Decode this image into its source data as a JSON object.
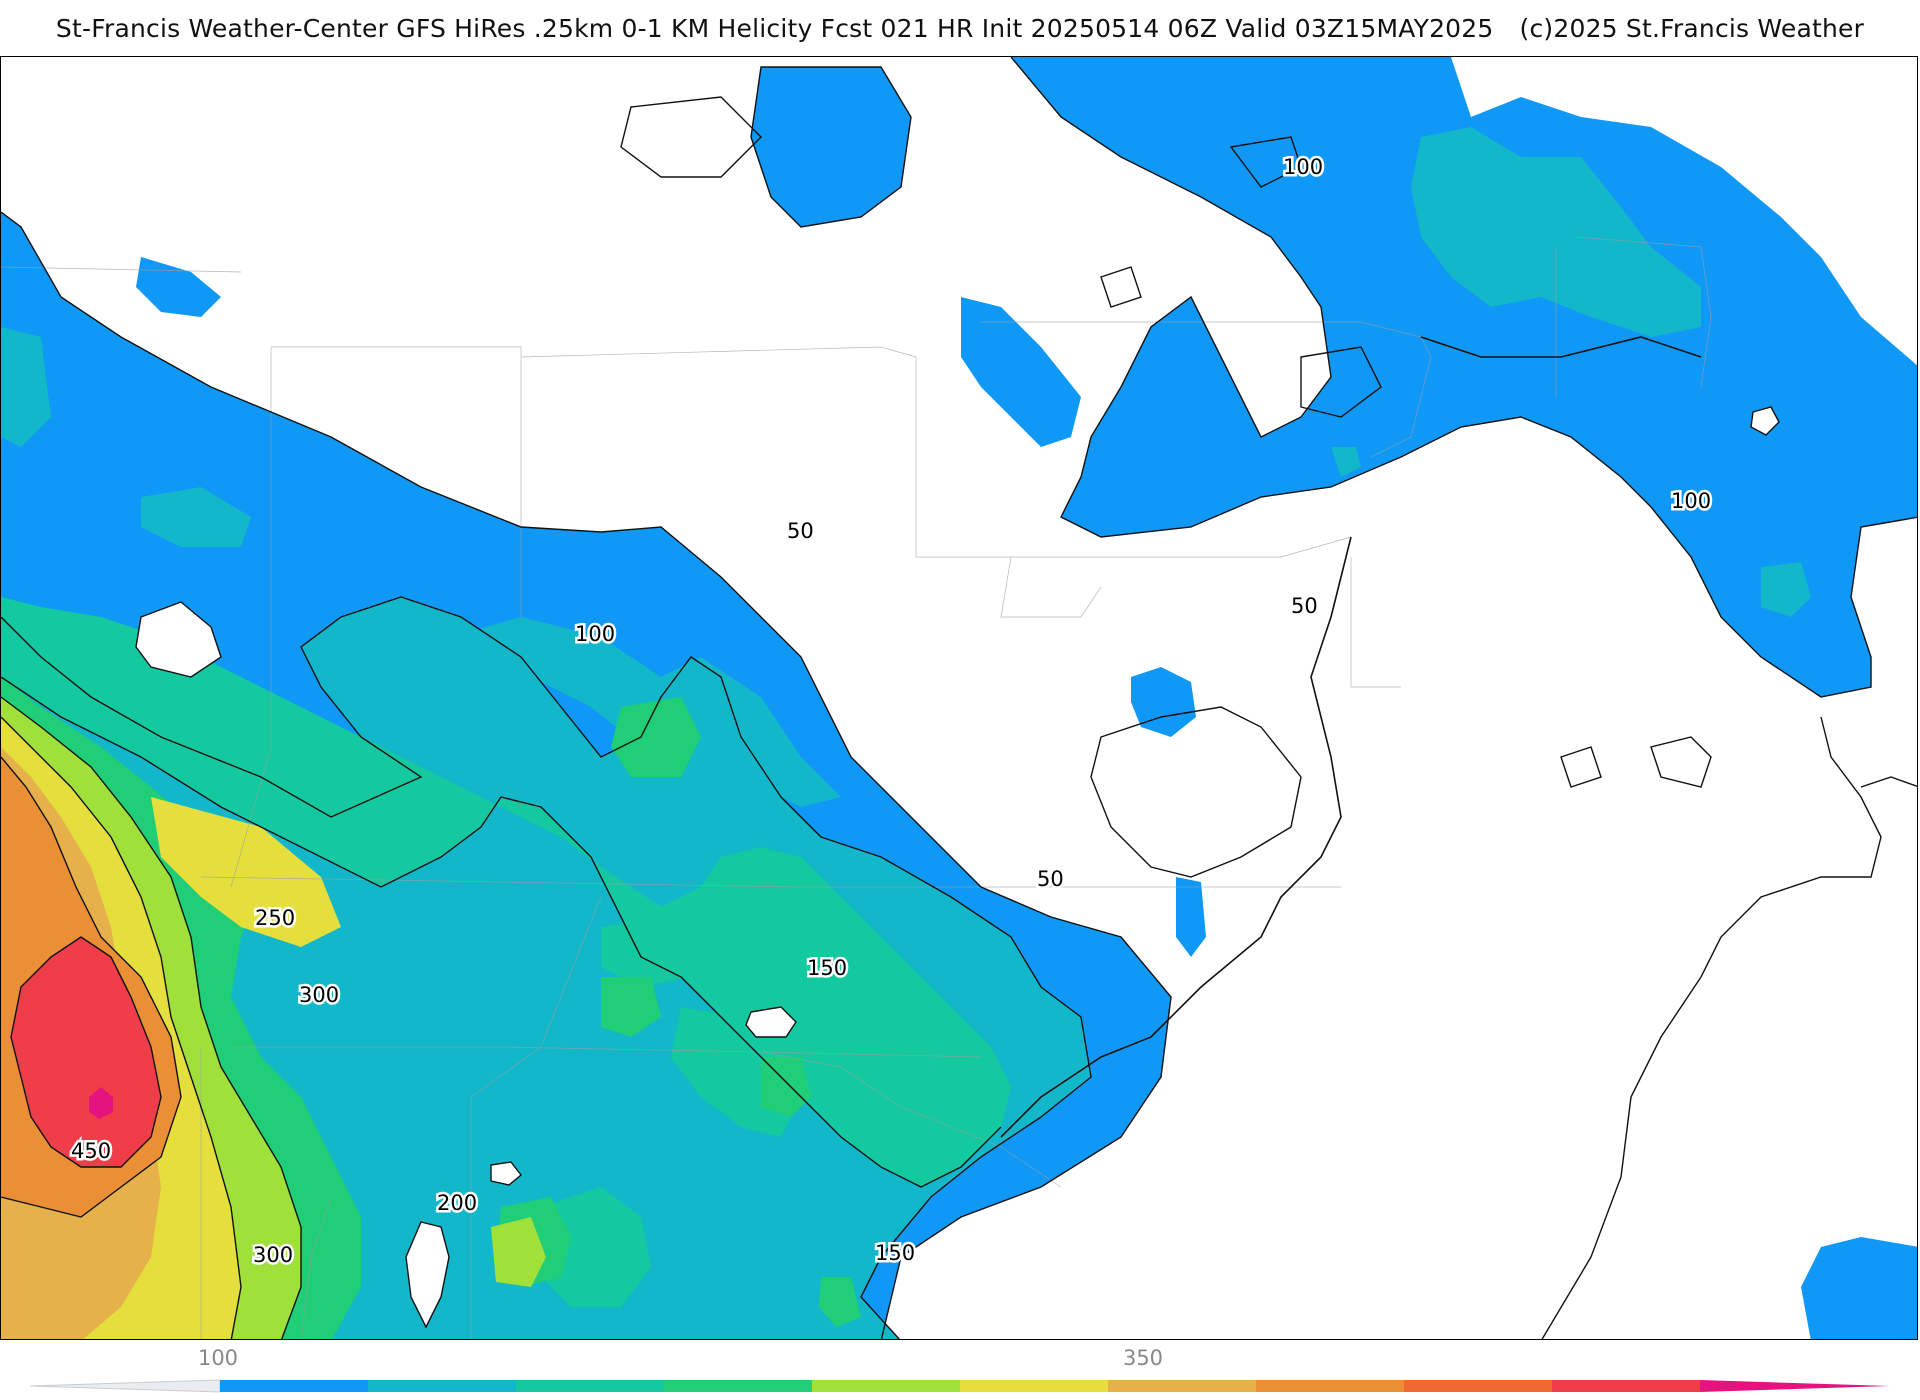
{
  "header": {
    "title": "St-Francis Weather-Center GFS HiRes .25km 0-1 KM Helicity Fcst 021 HR Init 20250514 06Z  Valid 03Z15MAY2025",
    "copyright": "(c)2025 St.Francis Weather"
  },
  "map": {
    "field": "0-1 KM Helicity",
    "contour_labels": [
      {
        "id": "label-100-north",
        "text": "100"
      },
      {
        "id": "label-100-atlantic",
        "text": "100"
      },
      {
        "id": "label-50-ohio",
        "text": "50"
      },
      {
        "id": "label-100-central",
        "text": "100"
      },
      {
        "id": "label-50-virginia",
        "text": "50"
      },
      {
        "id": "label-50-carolina",
        "text": "50"
      },
      {
        "id": "label-250",
        "text": "250"
      },
      {
        "id": "label-300-north",
        "text": "300"
      },
      {
        "id": "label-150-tennessee",
        "text": "150"
      },
      {
        "id": "label-450",
        "text": "450"
      },
      {
        "id": "label-200",
        "text": "200"
      },
      {
        "id": "label-300-south",
        "text": "300"
      },
      {
        "id": "label-150-carolina",
        "text": "150"
      },
      {
        "id": "label-150-georgia",
        "text": "150"
      }
    ]
  },
  "legend": {
    "tick_labels": [
      "100",
      "350"
    ],
    "colors": [
      "#0f98f5",
      "#12b7ca",
      "#14c99f",
      "#1fce76",
      "#9fe03a",
      "#e5df3d",
      "#e6b04a",
      "#ea8f36",
      "#f06930",
      "#ef3e4a",
      "#e5137d"
    ]
  },
  "colors": {
    "level_50": "#0f98f5",
    "level_100": "#12b7ca",
    "level_150": "#14c99f",
    "level_200": "#1fce76",
    "level_250": "#9fe03a",
    "level_300": "#e5df3d",
    "level_350": "#e6b04a",
    "level_400": "#ea8f36",
    "level_450": "#ef3e4a",
    "level_500": "#e5137d"
  }
}
